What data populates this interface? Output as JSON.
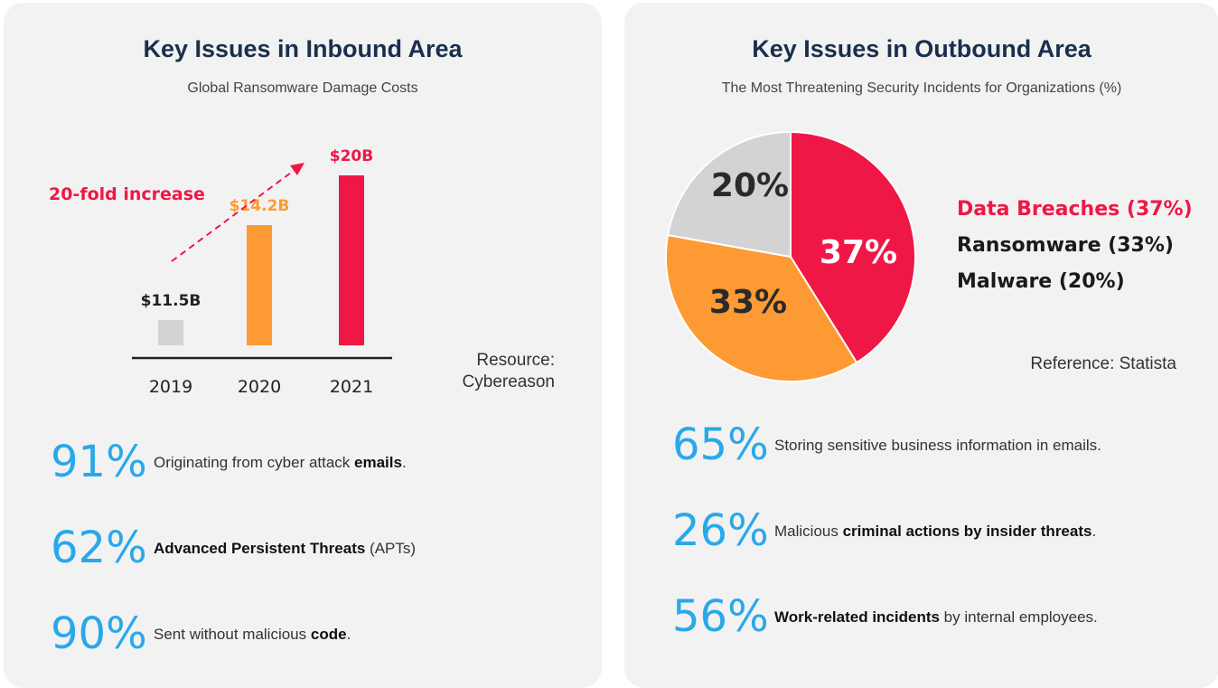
{
  "left": {
    "title": "Key Issues in Inbound Area",
    "subtitle": "Global Ransomware Damage Costs",
    "annotation": "20-fold increase",
    "source_label": "Resource:",
    "source_name": "Cybereason",
    "stats": [
      {
        "pct": "91%",
        "pre": "Originating from cyber attack ",
        "bold": "emails",
        "post": "."
      },
      {
        "pct": "62%",
        "pre": "",
        "bold": "Advanced Persistent Threats",
        "post": " (APTs)"
      },
      {
        "pct": "90%",
        "pre": "Sent without malicious ",
        "bold": "code",
        "post": "."
      }
    ]
  },
  "right": {
    "title": "Key Issues in Outbound Area",
    "subtitle": "The Most Threatening Security Incidents for Organizations (%)",
    "reference": "Reference: Statista",
    "stats": [
      {
        "pct": "65%",
        "pre": "Storing sensitive business information in emails.",
        "bold": "",
        "post": ""
      },
      {
        "pct": "26%",
        "pre": "Malicious ",
        "bold": "criminal actions by insider threats",
        "post": "."
      },
      {
        "pct": "56%",
        "pre": "",
        "bold": "Work-related incidents",
        "post": " by internal employees."
      }
    ]
  },
  "chart_data": [
    {
      "type": "bar",
      "title": "Global Ransomware Damage Costs",
      "categories": [
        "2019",
        "2020",
        "2021"
      ],
      "values": [
        11.5,
        14.2,
        20
      ],
      "value_labels": [
        "$11.5B",
        "$14.2B",
        "$20B"
      ],
      "colors": [
        "#d3d3d3",
        "#fd9a33",
        "#ef1745"
      ],
      "unit": "$B",
      "annotation": "20-fold increase"
    },
    {
      "type": "pie",
      "title": "The Most Threatening Security Incidents for Organizations (%)",
      "categories": [
        "Data Breaches (37%)",
        "Ransomware (33%)",
        "Malware (20%)"
      ],
      "values": [
        37,
        33,
        20
      ],
      "value_labels": [
        "37%",
        "33%",
        "20%"
      ],
      "colors": [
        "#ef1745",
        "#fd9a33",
        "#d3d3d3"
      ],
      "legend_colors": [
        "#ef1745",
        "#1a1a1a",
        "#1a1a1a"
      ],
      "legend_position": "right"
    }
  ]
}
